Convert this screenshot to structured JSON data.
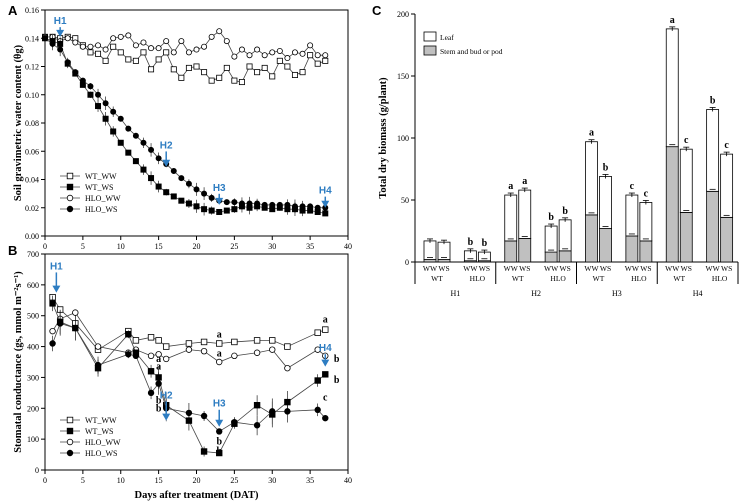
{
  "chart_data": [
    {
      "panel": "A",
      "type": "line",
      "xlabel": "",
      "ylabel": "Soil gravimetric water content (θg)",
      "xlim": [
        0,
        40
      ],
      "ylim": [
        0,
        0.16
      ],
      "yticks": [
        "0.00",
        "0.02",
        "0.04",
        "0.06",
        "0.08",
        "0.10",
        "0.12",
        "0.14",
        "0.16"
      ],
      "xticks": [
        "0",
        "5",
        "10",
        "15",
        "20",
        "25",
        "30",
        "35",
        "40"
      ],
      "legend": [
        "WT_WW",
        "WT_WS",
        "HLO_WW",
        "HLO_WS"
      ],
      "series": [
        {
          "name": "WT_WW",
          "marker": "open-square",
          "x": [
            0,
            1,
            2,
            3,
            4,
            5,
            6,
            7,
            8,
            9,
            10,
            11,
            12,
            13,
            14,
            15,
            16,
            17,
            18,
            19,
            20,
            21,
            22,
            23,
            24,
            25,
            26,
            27,
            28,
            29,
            30,
            31,
            32,
            33,
            34,
            35,
            36,
            37
          ],
          "y": [
            0.141,
            0.141,
            0.14,
            0.141,
            0.14,
            0.135,
            0.13,
            0.129,
            0.124,
            0.134,
            0.13,
            0.125,
            0.124,
            0.13,
            0.118,
            0.125,
            0.13,
            0.118,
            0.112,
            0.119,
            0.12,
            0.116,
            0.11,
            0.112,
            0.119,
            0.11,
            0.109,
            0.12,
            0.116,
            0.119,
            0.113,
            0.124,
            0.12,
            0.114,
            0.116,
            0.128,
            0.122,
            0.124
          ]
        },
        {
          "name": "HLO_WW",
          "marker": "open-circle",
          "x": [
            0,
            1,
            2,
            3,
            4,
            5,
            6,
            7,
            8,
            9,
            10,
            11,
            12,
            13,
            14,
            15,
            16,
            17,
            18,
            19,
            20,
            21,
            22,
            23,
            24,
            25,
            26,
            27,
            28,
            29,
            30,
            31,
            32,
            33,
            34,
            35,
            36,
            37
          ],
          "y": [
            0.141,
            0.141,
            0.138,
            0.14,
            0.137,
            0.134,
            0.134,
            0.135,
            0.132,
            0.14,
            0.141,
            0.142,
            0.135,
            0.137,
            0.133,
            0.133,
            0.138,
            0.13,
            0.138,
            0.13,
            0.132,
            0.134,
            0.141,
            0.145,
            0.138,
            0.127,
            0.132,
            0.128,
            0.132,
            0.128,
            0.13,
            0.131,
            0.126,
            0.13,
            0.129,
            0.135,
            0.128,
            0.128
          ]
        },
        {
          "name": "WT_WS",
          "marker": "filled-square",
          "x": [
            0,
            1,
            2,
            3,
            4,
            5,
            6,
            7,
            8,
            9,
            10,
            11,
            12,
            13,
            14,
            15,
            16,
            17,
            18,
            19,
            20,
            21,
            22,
            23,
            24,
            25,
            26,
            27,
            28,
            29,
            30,
            31,
            32,
            33,
            34,
            35,
            36,
            37
          ],
          "y": [
            0.14,
            0.138,
            0.136,
            0.122,
            0.115,
            0.107,
            0.1,
            0.092,
            0.083,
            0.074,
            0.066,
            0.059,
            0.053,
            0.047,
            0.041,
            0.035,
            0.031,
            0.028,
            0.025,
            0.023,
            0.021,
            0.019,
            0.018,
            0.017,
            0.018,
            0.019,
            0.021,
            0.02,
            0.021,
            0.02,
            0.019,
            0.02,
            0.019,
            0.019,
            0.018,
            0.018,
            0.017,
            0.016
          ]
        },
        {
          "name": "HLO_WS",
          "marker": "filled-circle",
          "x": [
            0,
            1,
            2,
            3,
            4,
            5,
            6,
            7,
            8,
            9,
            10,
            11,
            12,
            13,
            14,
            15,
            16,
            17,
            18,
            19,
            20,
            21,
            22,
            23,
            24,
            25,
            26,
            27,
            28,
            29,
            30,
            31,
            32,
            33,
            34,
            35,
            36,
            37
          ],
          "y": [
            0.14,
            0.136,
            0.132,
            0.123,
            0.116,
            0.11,
            0.106,
            0.1,
            0.094,
            0.088,
            0.083,
            0.076,
            0.071,
            0.066,
            0.061,
            0.055,
            0.051,
            0.046,
            0.041,
            0.037,
            0.033,
            0.03,
            0.027,
            0.025,
            0.024,
            0.024,
            0.023,
            0.023,
            0.023,
            0.022,
            0.022,
            0.022,
            0.022,
            0.021,
            0.021,
            0.021,
            0.02,
            0.02
          ]
        }
      ],
      "annotations": [
        {
          "text": "H1",
          "x": 2,
          "y": 0.15,
          "arrow_to": 0.141
        },
        {
          "text": "H2",
          "x": 16,
          "y": 0.062,
          "arrow_to": 0.049
        },
        {
          "text": "H3",
          "x": 23,
          "y": 0.032,
          "arrow_to": 0.022
        },
        {
          "text": "H4",
          "x": 37,
          "y": 0.03,
          "arrow_to": 0.02
        }
      ]
    },
    {
      "panel": "B",
      "type": "line",
      "xlabel": "Days after treatment (DAT)",
      "ylabel": "Stomatal conductance (gs, mmol m⁻²s⁻¹)",
      "xlim": [
        0,
        40
      ],
      "ylim": [
        0,
        700
      ],
      "yticks": [
        "0",
        "100",
        "200",
        "300",
        "400",
        "500",
        "600",
        "700"
      ],
      "xticks": [
        "0",
        "5",
        "10",
        "15",
        "20",
        "25",
        "30",
        "35",
        "40"
      ],
      "legend": [
        "WT_WW",
        "WT_WS",
        "HLO_WW",
        "HLO_WS"
      ],
      "series": [
        {
          "name": "WT_WW",
          "marker": "open-square",
          "x": [
            1,
            2,
            4,
            7,
            11,
            12,
            14,
            15,
            16,
            19,
            21,
            23,
            25,
            28,
            30,
            32,
            36,
            37
          ],
          "y": [
            560,
            520,
            475,
            390,
            450,
            420,
            430,
            420,
            400,
            410,
            415,
            410,
            415,
            420,
            420,
            400,
            445,
            455
          ]
        },
        {
          "name": "HLO_WW",
          "marker": "open-circle",
          "x": [
            1,
            2,
            4,
            7,
            11,
            12,
            14,
            15,
            16,
            19,
            21,
            23,
            25,
            28,
            30,
            32,
            36,
            37
          ],
          "y": [
            450,
            490,
            510,
            400,
            380,
            390,
            370,
            375,
            360,
            390,
            385,
            350,
            370,
            380,
            390,
            330,
            390,
            370
          ]
        },
        {
          "name": "WT_WS",
          "marker": "filled-square",
          "x": [
            1,
            2,
            4,
            7,
            11,
            12,
            14,
            15,
            16,
            19,
            21,
            23,
            25,
            28,
            30,
            32,
            36,
            37
          ],
          "y": [
            540,
            480,
            460,
            330,
            440,
            380,
            320,
            300,
            210,
            160,
            60,
            55,
            150,
            210,
            180,
            220,
            290,
            310
          ]
        },
        {
          "name": "HLO_WS",
          "marker": "filled-circle",
          "x": [
            1,
            2,
            4,
            7,
            11,
            12,
            14,
            15,
            16,
            19,
            21,
            23,
            25,
            28,
            30,
            32,
            36,
            37
          ],
          "y": [
            410,
            475,
            460,
            340,
            375,
            370,
            250,
            280,
            200,
            185,
            175,
            125,
            155,
            145,
            190,
            190,
            195,
            168
          ]
        }
      ],
      "letters": [
        {
          "text": "a",
          "x": 15,
          "y": 350
        },
        {
          "text": "a",
          "x": 15,
          "y": 325
        },
        {
          "text": "b",
          "x": 15,
          "y": 215
        },
        {
          "text": "b",
          "x": 15,
          "y": 190
        },
        {
          "text": "a",
          "x": 23,
          "y": 430
        },
        {
          "text": "a",
          "x": 23,
          "y": 368
        },
        {
          "text": "b",
          "x": 23,
          "y": 82
        },
        {
          "text": "b",
          "x": 23,
          "y": 52
        },
        {
          "text": "a",
          "x": 37,
          "y": 478
        },
        {
          "text": "b",
          "x": 38.5,
          "y": 350
        },
        {
          "text": "b",
          "x": 38.5,
          "y": 282
        },
        {
          "text": "c",
          "x": 37,
          "y": 225
        }
      ],
      "annotations": [
        {
          "text": "H1",
          "x": 1.5,
          "y": 650,
          "arrow_to": 575
        },
        {
          "text": "H2",
          "x": 16,
          "y": 232,
          "arrow_to": 160
        },
        {
          "text": "H3",
          "x": 23,
          "y": 205,
          "arrow_to": 140
        },
        {
          "text": "H4",
          "x": 37,
          "y": 385,
          "arrow_to": 335
        }
      ]
    },
    {
      "panel": "C",
      "type": "bar",
      "ylabel": "Total dry biomass (g/plant)",
      "ylim": [
        0,
        200
      ],
      "yticks": [
        "0",
        "50",
        "100",
        "150",
        "200"
      ],
      "legend": [
        "Leaf",
        "Stem and bud or pod"
      ],
      "groups": [
        {
          "harvest": "H1",
          "genotypes": [
            {
              "name": "WT",
              "bars": [
                {
                  "trt": "WW",
                  "stem": 2,
                  "total": 17,
                  "letter": ""
                },
                {
                  "trt": "WS",
                  "stem": 2,
                  "total": 16,
                  "letter": ""
                }
              ]
            },
            {
              "name": "HLO",
              "bars": [
                {
                  "trt": "WW",
                  "stem": 1,
                  "total": 9,
                  "letter": "b"
                },
                {
                  "trt": "WS",
                  "stem": 1,
                  "total": 8,
                  "letter": "b"
                }
              ]
            }
          ]
        },
        {
          "harvest": "H2",
          "genotypes": [
            {
              "name": "WT",
              "bars": [
                {
                  "trt": "WW",
                  "stem": 17,
                  "total": 54,
                  "letter": "a"
                },
                {
                  "trt": "WS",
                  "stem": 19,
                  "total": 58,
                  "letter": "a"
                }
              ]
            },
            {
              "name": "HLO",
              "bars": [
                {
                  "trt": "WW",
                  "stem": 8,
                  "total": 29,
                  "letter": "b"
                },
                {
                  "trt": "WS",
                  "stem": 9,
                  "total": 34,
                  "letter": "b"
                }
              ]
            }
          ]
        },
        {
          "harvest": "H3",
          "genotypes": [
            {
              "name": "WT",
              "bars": [
                {
                  "trt": "WW",
                  "stem": 38,
                  "total": 97,
                  "letter": "a"
                },
                {
                  "trt": "WS",
                  "stem": 27,
                  "total": 69,
                  "letter": "b"
                }
              ]
            },
            {
              "name": "HLO",
              "bars": [
                {
                  "trt": "WW",
                  "stem": 21,
                  "total": 54,
                  "letter": "c"
                },
                {
                  "trt": "WS",
                  "stem": 17,
                  "total": 48,
                  "letter": "c"
                }
              ]
            }
          ]
        },
        {
          "harvest": "H4",
          "genotypes": [
            {
              "name": "WT",
              "bars": [
                {
                  "trt": "WW",
                  "stem": 93,
                  "total": 188,
                  "letter": "a"
                },
                {
                  "trt": "WS",
                  "stem": 40,
                  "total": 91,
                  "letter": "c"
                }
              ]
            },
            {
              "name": "HLO",
              "bars": [
                {
                  "trt": "WW",
                  "stem": 57,
                  "total": 123,
                  "letter": "b"
                },
                {
                  "trt": "WS",
                  "stem": 36,
                  "total": 87,
                  "letter": "c"
                }
              ]
            }
          ]
        }
      ]
    }
  ],
  "panel_labels": [
    "A",
    "B",
    "C"
  ],
  "colors": {
    "axis": "#000000",
    "annot": "#2e7dc2",
    "stem": "#c0c0c0",
    "leaf": "#ffffff"
  }
}
